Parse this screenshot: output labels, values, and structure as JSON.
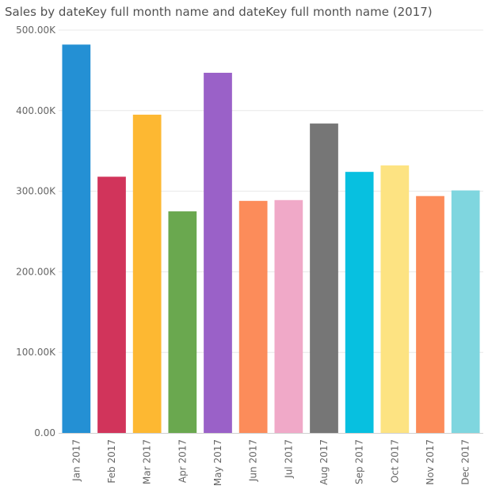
{
  "chart_data": {
    "type": "bar",
    "title": "Sales by dateKey full month name and dateKey full month name (2017)",
    "xlabel": "",
    "ylabel": "",
    "categories": [
      "Jan 2017",
      "Feb 2017",
      "Mar 2017",
      "Apr 2017",
      "May 2017",
      "Jun 2017",
      "Jul 2017",
      "Aug 2017",
      "Sep 2017",
      "Oct 2017",
      "Nov 2017",
      "Dec 2017"
    ],
    "values": [
      482000,
      318000,
      395000,
      275000,
      447000,
      288000,
      289000,
      384000,
      324000,
      332000,
      294000,
      301000
    ],
    "colors": [
      "#2490d4",
      "#d1345b",
      "#fdb832",
      "#6aa84f",
      "#9a61c8",
      "#fc8c5a",
      "#f0a9c8",
      "#767676",
      "#07c0e0",
      "#fde382",
      "#fc8c5a",
      "#7fd6df"
    ],
    "ylim": [
      0,
      500000
    ],
    "yticks": [
      {
        "value": 0,
        "label": "0.00"
      },
      {
        "value": 100000,
        "label": "100.00K"
      },
      {
        "value": 200000,
        "label": "200.00K"
      },
      {
        "value": 300000,
        "label": "300.00K"
      },
      {
        "value": 400000,
        "label": "400.00K"
      },
      {
        "value": 500000,
        "label": "500.00K"
      }
    ],
    "grid": true,
    "gridline_color": "#e8e8e8",
    "legend": "none"
  }
}
